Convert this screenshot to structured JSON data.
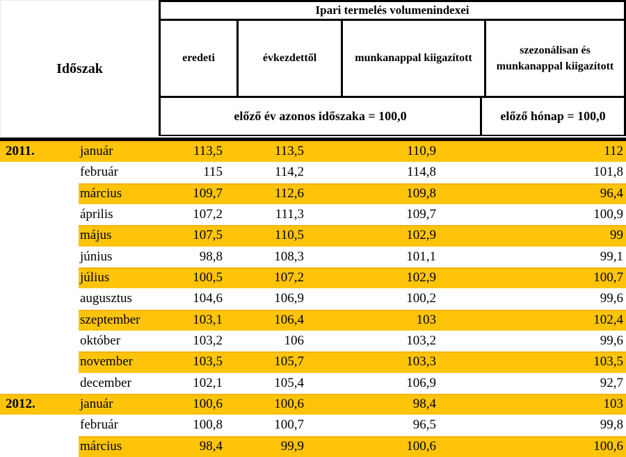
{
  "colors": {
    "highlight": "#FDC40A",
    "highlight_edge": "#F0A70C",
    "border": "#000000",
    "text": "#000000",
    "background": "#FFFFFF"
  },
  "chart_data": {
    "type": "table",
    "title": "Ipari termelés volumenindexei",
    "row_header": "Időszak",
    "columns": [
      "eredeti",
      "évkezdettől",
      "munkanappal kiigazított",
      "szezonálisan és munkanappal kiigazított"
    ],
    "scale_notes": {
      "left": "előző év azonos időszaka = 100,0",
      "left_applies_to_columns": [
        0,
        1,
        2
      ],
      "right": "előző hónap = 100,0",
      "right_applies_to_columns": [
        3
      ]
    },
    "number_format": "comma-decimal",
    "layout_hints": {
      "striping": "alternating rows highlighted in gold starting with the first data row",
      "values_alignment": "right",
      "grid": "heavy black borders on header only"
    },
    "rows": [
      {
        "year": "2011.",
        "month": "január",
        "values": [
          113.5,
          113.5,
          110.9,
          112
        ]
      },
      {
        "month": "február",
        "values": [
          115,
          114.2,
          114.8,
          101.8
        ]
      },
      {
        "month": "március",
        "values": [
          109.7,
          112.6,
          109.8,
          96.4
        ]
      },
      {
        "month": "április",
        "values": [
          107.2,
          111.3,
          109.7,
          100.9
        ]
      },
      {
        "month": "május",
        "values": [
          107.5,
          110.5,
          102.9,
          99
        ]
      },
      {
        "month": "június",
        "values": [
          98.8,
          108.3,
          101.1,
          99.1
        ]
      },
      {
        "month": "július",
        "values": [
          100.5,
          107.2,
          102.9,
          100.7
        ]
      },
      {
        "month": "augusztus",
        "values": [
          104.6,
          106.9,
          100.2,
          99.6
        ]
      },
      {
        "month": "szeptember",
        "values": [
          103.1,
          106.4,
          103,
          102.4
        ]
      },
      {
        "month": "október",
        "values": [
          103.2,
          106,
          103.2,
          99.6
        ]
      },
      {
        "month": "november",
        "values": [
          103.5,
          105.7,
          103.3,
          103.5
        ]
      },
      {
        "month": "december",
        "values": [
          102.1,
          105.4,
          106.9,
          92.7
        ]
      },
      {
        "year": "2012.",
        "month": "január",
        "values": [
          100.6,
          100.6,
          98.4,
          103
        ]
      },
      {
        "month": "február",
        "values": [
          100.8,
          100.7,
          96.5,
          99.8
        ]
      },
      {
        "month": "március",
        "values": [
          98.4,
          99.9,
          100.6,
          100.6
        ]
      }
    ]
  }
}
